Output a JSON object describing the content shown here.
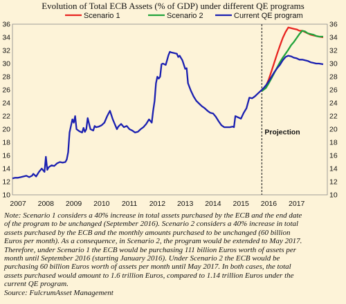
{
  "chart_data": {
    "type": "line",
    "title": "Evolution of Total ECB Assets (% of GDP) under different QE programs",
    "xlabel": "",
    "ylabel": "",
    "xlim": [
      2006.8,
      2018.1
    ],
    "ylim": [
      10,
      36
    ],
    "yticks": [
      10,
      12,
      14,
      16,
      18,
      20,
      22,
      24,
      26,
      28,
      30,
      32,
      34,
      36
    ],
    "xticks": [
      2007,
      2008,
      2009,
      2010,
      2011,
      2012,
      2013,
      2014,
      2015,
      2016,
      2017
    ],
    "grid": false,
    "legend_position": "top",
    "annotation": "Projection",
    "projection_x": 2015.75,
    "series": [
      {
        "name": "Scenario 1",
        "color": "#e8231f",
        "x": [
          2015.75,
          2015.9,
          2016.0,
          2016.1,
          2016.2,
          2016.3,
          2016.4,
          2016.5,
          2016.6,
          2016.7,
          2016.8,
          2016.9,
          2017.0,
          2017.1,
          2017.2,
          2017.3,
          2017.4,
          2017.5,
          2017.6,
          2017.7,
          2017.8,
          2017.95
        ],
        "values": [
          25.8,
          26.6,
          27.6,
          28.9,
          30.2,
          31.5,
          32.7,
          33.9,
          34.8,
          35.5,
          35.4,
          35.3,
          35.2,
          35.0,
          35.0,
          34.8,
          34.6,
          34.4,
          34.3,
          34.2,
          34.1,
          34.0
        ]
      },
      {
        "name": "Scenario 2",
        "color": "#21a33b",
        "x": [
          2015.75,
          2015.9,
          2016.0,
          2016.1,
          2016.2,
          2016.3,
          2016.4,
          2016.5,
          2016.6,
          2016.7,
          2016.8,
          2016.9,
          2017.0,
          2017.1,
          2017.2,
          2017.3,
          2017.4,
          2017.5,
          2017.6,
          2017.7,
          2017.8,
          2017.95
        ],
        "values": [
          25.8,
          26.3,
          27.0,
          27.8,
          28.6,
          29.4,
          30.2,
          30.9,
          31.5,
          32.1,
          32.8,
          33.3,
          33.9,
          34.5,
          35.0,
          34.9,
          34.6,
          34.5,
          34.4,
          34.2,
          34.1,
          34.1
        ]
      },
      {
        "name": "Current QE program",
        "color": "#1a1fb0",
        "x": [
          2006.8,
          2006.9,
          2007.0,
          2007.1,
          2007.2,
          2007.3,
          2007.4,
          2007.5,
          2007.55,
          2007.65,
          2007.75,
          2007.85,
          2007.95,
          2008.0,
          2008.05,
          2008.1,
          2008.2,
          2008.3,
          2008.4,
          2008.5,
          2008.6,
          2008.7,
          2008.75,
          2008.8,
          2008.85,
          2008.95,
          2009.0,
          2009.05,
          2009.1,
          2009.2,
          2009.3,
          2009.35,
          2009.4,
          2009.45,
          2009.5,
          2009.6,
          2009.7,
          2009.75,
          2009.8,
          2009.9,
          2010.0,
          2010.1,
          2010.2,
          2010.3,
          2010.4,
          2010.5,
          2010.55,
          2010.6,
          2010.7,
          2010.8,
          2010.9,
          2011.0,
          2011.1,
          2011.2,
          2011.3,
          2011.4,
          2011.5,
          2011.6,
          2011.7,
          2011.8,
          2011.85,
          2011.9,
          2011.95,
          2012.0,
          2012.05,
          2012.1,
          2012.15,
          2012.2,
          2012.3,
          2012.4,
          2012.45,
          2012.5,
          2012.6,
          2012.7,
          2012.75,
          2012.8,
          2012.9,
          2013.0,
          2013.05,
          2013.1,
          2013.2,
          2013.3,
          2013.4,
          2013.5,
          2013.6,
          2013.7,
          2013.8,
          2013.9,
          2014.0,
          2014.1,
          2014.2,
          2014.3,
          2014.4,
          2014.5,
          2014.6,
          2014.7,
          2014.75,
          2014.8,
          2014.9,
          2015.0,
          2015.1,
          2015.2,
          2015.3,
          2015.4,
          2015.5,
          2015.6,
          2015.7,
          2015.8,
          2015.9,
          2016.0,
          2016.1,
          2016.2,
          2016.3,
          2016.4,
          2016.5,
          2016.6,
          2016.7,
          2016.8,
          2016.9,
          2017.0,
          2017.1,
          2017.2,
          2017.3,
          2017.4,
          2017.5,
          2017.6,
          2017.7,
          2017.8,
          2017.95
        ],
        "values": [
          12.5,
          12.6,
          12.6,
          12.7,
          12.8,
          12.9,
          12.7,
          12.9,
          13.2,
          12.8,
          13.5,
          14.0,
          13.5,
          15.8,
          13.8,
          14.2,
          14.5,
          14.4,
          14.8,
          15.0,
          14.9,
          15.0,
          15.4,
          16.5,
          19.5,
          21.5,
          21.0,
          22.0,
          20.0,
          19.7,
          19.5,
          20.2,
          19.6,
          20.0,
          21.7,
          20.0,
          19.8,
          20.5,
          20.3,
          20.4,
          20.6,
          21.0,
          22.0,
          22.8,
          21.5,
          20.5,
          20.0,
          20.4,
          20.8,
          20.3,
          20.5,
          20.0,
          19.8,
          19.5,
          19.6,
          20.0,
          20.3,
          20.8,
          21.5,
          21.0,
          22.8,
          24.3,
          27.0,
          28.0,
          27.7,
          28.0,
          29.9,
          30.0,
          29.8,
          31.3,
          31.8,
          31.7,
          31.6,
          31.5,
          31.0,
          31.2,
          30.5,
          29.2,
          29.3,
          27.0,
          25.9,
          25.0,
          24.3,
          23.9,
          23.5,
          23.2,
          22.8,
          22.5,
          22.4,
          21.9,
          21.2,
          20.6,
          20.3,
          20.3,
          20.3,
          20.4,
          20.3,
          22.0,
          21.8,
          21.6,
          22.5,
          23.2,
          24.8,
          24.7,
          25.0,
          25.4,
          25.8,
          26.2,
          26.7,
          27.3,
          28.0,
          28.7,
          29.3,
          29.8,
          30.5,
          31.0,
          31.2,
          31.1,
          30.9,
          30.8,
          30.6,
          30.6,
          30.5,
          30.4,
          30.2,
          30.1,
          30.0,
          30.0,
          29.9
        ]
      }
    ]
  },
  "note": [
    "Note: Scenario 1 considers a 40% increase in total assets purchased by the ECB and the end date",
    "of the program to be unchanged (September 2016). Scenario 2 considers a 40% increase in total",
    "assets purchased by the ECB and the monthly amounts purchased to be unchanged (60 billion",
    "Euros per month). As a consequence, in Scenario 2, the program would be extended to May 2017.",
    "Therefore, under Scenario 1 the ECB would be purchasing 111 billion Euros worth of assets per",
    "month until September 2016 (starting January 2016). Under Scenario 2 the ECB would be",
    "purchasing 60 billion Euros worth of assets per month until May 2017. In both cases, the total",
    "assets purchased would amount to 1.6 trillion Euros, compared to 1.14 trillion Euros under the",
    "current QE program.",
    "Source: FulcrumAsset Management"
  ]
}
